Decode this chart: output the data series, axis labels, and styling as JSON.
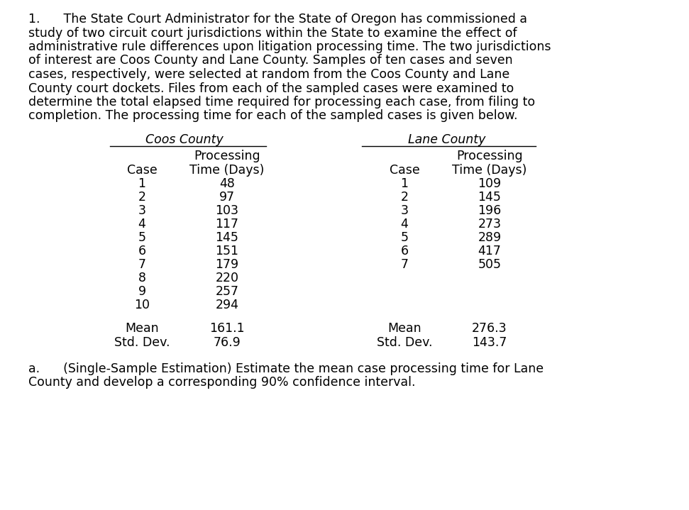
{
  "intro_line1": "1.      The State Court Administrator for the State of Oregon has commissioned a",
  "intro_line2": "study of two circuit court jurisdictions within the State to examine the effect of",
  "intro_line3": "administrative rule differences upon litigation processing time. The two jurisdictions",
  "intro_line4": "of interest are Coos County and Lane County. Samples of ten cases and seven",
  "intro_line5": "cases, respectively, were selected at random from the Coos County and Lane",
  "intro_line6": "County court dockets. Files from each of the sampled cases were examined to",
  "intro_line7": "determine the total elapsed time required for processing each case, from filing to",
  "intro_line8": "completion. The processing time for each of the sampled cases is given below.",
  "coos_title": "Coos County",
  "lane_title": "Lane County",
  "col_header1": "Processing",
  "col_header2": "Time (Days)",
  "case_label": "Case",
  "coos_cases": [
    "1",
    "2",
    "3",
    "4",
    "5",
    "6",
    "7",
    "8",
    "9",
    "10"
  ],
  "coos_times": [
    "48",
    "97",
    "103",
    "117",
    "145",
    "151",
    "179",
    "220",
    "257",
    "294"
  ],
  "coos_mean": "161.1",
  "coos_std": "76.9",
  "lane_cases": [
    "1",
    "2",
    "3",
    "4",
    "5",
    "6",
    "7"
  ],
  "lane_times": [
    "109",
    "145",
    "196",
    "273",
    "289",
    "417",
    "505"
  ],
  "lane_mean": "276.3",
  "lane_std": "143.7",
  "mean_label": "Mean",
  "std_label": "Std. Dev.",
  "part_a_line1": "a.      (Single-Sample Estimation) Estimate the mean case processing time for Lane",
  "part_a_line2": "County and develop a corresponding 90% confidence interval.",
  "bg_color": "#ffffff",
  "text_color": "#000000",
  "font_size": 12.5,
  "font_family": "DejaVu Sans"
}
